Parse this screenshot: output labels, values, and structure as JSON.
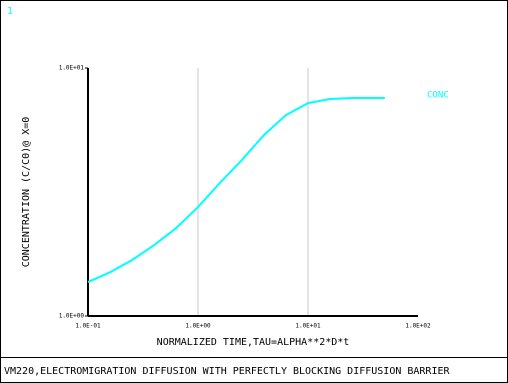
{
  "chart_data": {
    "type": "line",
    "window_label": "1",
    "caption": "VM220,ELECTROMIGRATION DIFFUSION WITH PERFECTLY BLOCKING DIFFUSION BARRIER",
    "x_label": "NORMALIZED TIME,TAU=ALPHA**2*D*t",
    "y_label": "CONCENTRATION (C/C0)@ X=0",
    "x_scale": "log",
    "y_scale": "log",
    "grid": true,
    "x": [
      0.1,
      0.158,
      0.251,
      0.398,
      0.631,
      1.0,
      1.58,
      2.51,
      3.98,
      6.31,
      10,
      15.8,
      25.1,
      50
    ],
    "series": [
      {
        "name": "CONC",
        "color": "#00ffff",
        "values": [
          1.37,
          1.5,
          1.68,
          1.93,
          2.26,
          2.75,
          3.44,
          4.26,
          5.37,
          6.46,
          7.22,
          7.5,
          7.57,
          7.57
        ]
      }
    ],
    "xlim": [
      0.1,
      100
    ],
    "xticks": [
      {
        "value": 0.1,
        "label": "1.0E-01"
      },
      {
        "value": 1,
        "label": "1.0E+00"
      },
      {
        "value": 10,
        "label": "1.0E+01"
      },
      {
        "value": 100,
        "label": "1.0E+02"
      }
    ],
    "ylim": [
      1,
      10
    ],
    "yticks": [
      {
        "value": 1,
        "label": "1.0E+00"
      },
      {
        "value": 10,
        "label": "1.0E+01"
      }
    ]
  }
}
